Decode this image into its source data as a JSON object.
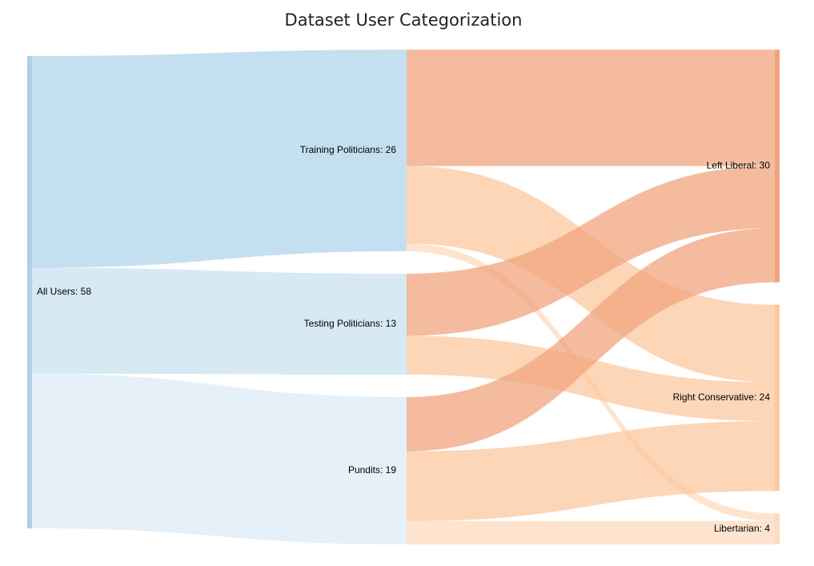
{
  "chart_data": {
    "type": "sankey",
    "title": "Dataset User Categorization",
    "nodes": [
      {
        "id": "all",
        "label": "All Users: 58"
      },
      {
        "id": "train",
        "label": "Training Politicians: 26"
      },
      {
        "id": "test",
        "label": "Testing Politicians: 13"
      },
      {
        "id": "pundits",
        "label": "Pundits: 19"
      },
      {
        "id": "left",
        "label": "Left Liberal: 30"
      },
      {
        "id": "right",
        "label": "Right Conservative: 24"
      },
      {
        "id": "lib",
        "label": "Libertarian: 4"
      }
    ],
    "links": [
      {
        "source": "all",
        "target": "train",
        "value": 26
      },
      {
        "source": "all",
        "target": "test",
        "value": 13
      },
      {
        "source": "all",
        "target": "pundits",
        "value": 19
      },
      {
        "source": "train",
        "target": "left",
        "value": 15
      },
      {
        "source": "train",
        "target": "right",
        "value": 10
      },
      {
        "source": "train",
        "target": "lib",
        "value": 1
      },
      {
        "source": "test",
        "target": "left",
        "value": 8
      },
      {
        "source": "test",
        "target": "right",
        "value": 5
      },
      {
        "source": "pundits",
        "target": "left",
        "value": 7
      },
      {
        "source": "pundits",
        "target": "right",
        "value": 9
      },
      {
        "source": "pundits",
        "target": "lib",
        "value": 3
      }
    ]
  },
  "colors": {
    "source_bar": "#aecfe6",
    "stage1": [
      "#c4e0f0",
      "#d6e9f4",
      "#e6f0f9"
    ],
    "left_liberal": "#f0a47e",
    "right_conservative": "#fcc79f",
    "libertarian": "#fddbbd"
  }
}
